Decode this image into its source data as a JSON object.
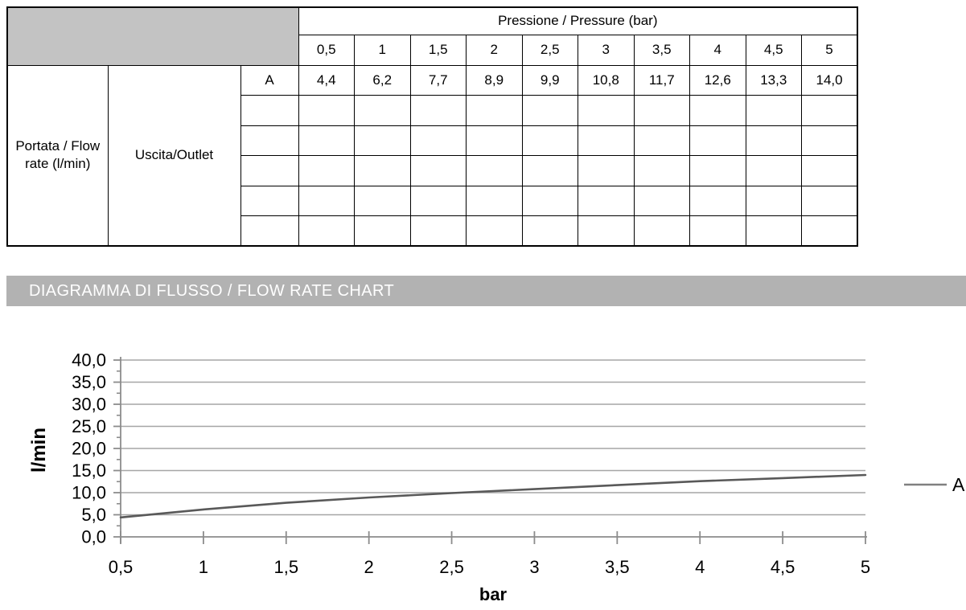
{
  "table": {
    "pressure_header": "Pressione / Pressure (bar)",
    "pressure_ticks": [
      "0,5",
      "1",
      "1,5",
      "2",
      "2,5",
      "3",
      "3,5",
      "4",
      "4,5",
      "5"
    ],
    "flow_header": "Portata / Flow rate (l/min)",
    "outlet_header": "Uscita/Outlet",
    "rows": [
      {
        "outlet": "A",
        "values": [
          "4,4",
          "6,2",
          "7,7",
          "8,9",
          "9,9",
          "10,8",
          "11,7",
          "12,6",
          "13,3",
          "14,0"
        ]
      },
      {
        "outlet": "",
        "values": [
          "",
          "",
          "",
          "",
          "",
          "",
          "",
          "",
          "",
          ""
        ]
      },
      {
        "outlet": "",
        "values": [
          "",
          "",
          "",
          "",
          "",
          "",
          "",
          "",
          "",
          ""
        ]
      },
      {
        "outlet": "",
        "values": [
          "",
          "",
          "",
          "",
          "",
          "",
          "",
          "",
          "",
          ""
        ]
      },
      {
        "outlet": "",
        "values": [
          "",
          "",
          "",
          "",
          "",
          "",
          "",
          "",
          "",
          ""
        ]
      },
      {
        "outlet": "",
        "values": [
          "",
          "",
          "",
          "",
          "",
          "",
          "",
          "",
          "",
          ""
        ]
      }
    ]
  },
  "banner": {
    "title": "DIAGRAMMA DI FLUSSO / FLOW RATE CHART"
  },
  "chart_data": {
    "type": "line",
    "title": "",
    "x": [
      0.5,
      1,
      1.5,
      2,
      2.5,
      3,
      3.5,
      4,
      4.5,
      5
    ],
    "series": [
      {
        "name": "A",
        "values": [
          4.4,
          6.2,
          7.7,
          8.9,
          9.9,
          10.8,
          11.7,
          12.6,
          13.3,
          14.0
        ],
        "color": "#595959"
      }
    ],
    "xlabel": "bar",
    "ylabel": "l/min",
    "xlim": [
      0.5,
      5
    ],
    "ylim": [
      0,
      40
    ],
    "y_major_step": 5,
    "y_minor_step": 2.5,
    "x_tick_step": 0.5,
    "xtick_labels": [
      "0,5",
      "1",
      "1,5",
      "2",
      "2,5",
      "3",
      "3,5",
      "4",
      "4,5",
      "5"
    ],
    "ytick_labels": [
      "0,0",
      "5,0",
      "10,0",
      "15,0",
      "20,0",
      "25,0",
      "30,0",
      "35,0",
      "40,0"
    ],
    "grid": "horizontal-major",
    "legend_position": "right",
    "colors": {
      "grid": "#a6a6a6",
      "axis": "#8c8c8c",
      "line": "#595959",
      "legend_line": "#808080",
      "text": "#000000"
    }
  },
  "colors": {
    "table_header_fill": "#c3c3c3",
    "banner_fill": "#b2b2b2",
    "banner_text": "#ffffff",
    "table_border": "#000000"
  }
}
